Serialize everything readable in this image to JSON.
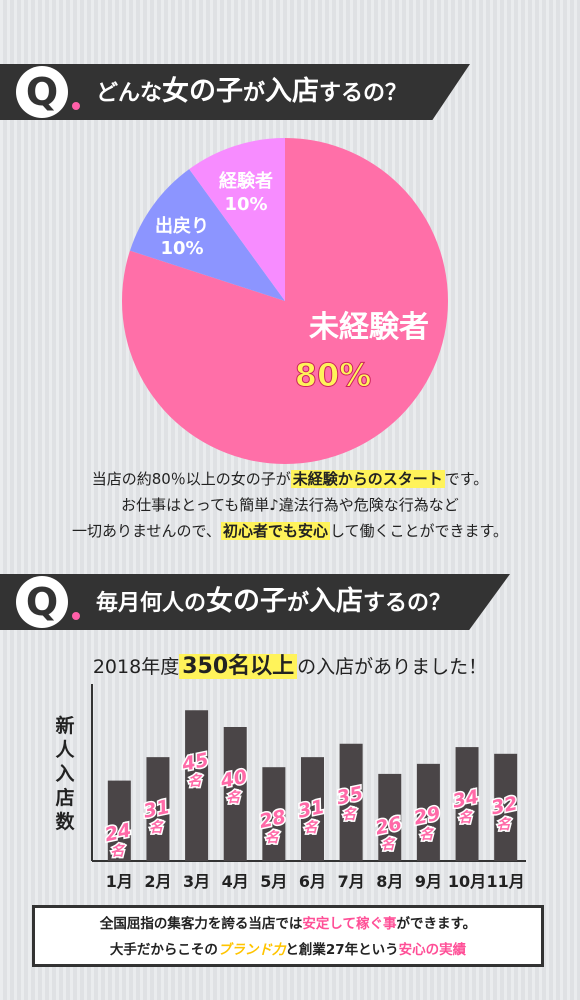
{
  "q1": {
    "q_letter": "Q",
    "parts": [
      "どんな",
      "女の子",
      "が",
      "入店",
      "するの？"
    ]
  },
  "pie": {
    "type": "pie",
    "slices": [
      {
        "label": "未経験者",
        "value": 80,
        "value_text": "80%",
        "color": "#ff6fa8"
      },
      {
        "label": "出戻り",
        "value": 10,
        "value_text": "10%",
        "color": "#8c95ff"
      },
      {
        "label": "経験者",
        "value": 10,
        "value_text": "10%",
        "color": "#f78cff"
      }
    ]
  },
  "desc1": {
    "line1_a": "当店の約80％以上の女の子が",
    "line1_hl": "未経験からのスタート",
    "line1_b": "です。",
    "line2": "お仕事はとっても簡単♪違法行為や危険な行為など",
    "line3_a": "一切ありませんので、",
    "line3_hl": "初心者でも安心",
    "line3_b": "して働くことができます。"
  },
  "q2": {
    "q_letter": "Q",
    "parts": [
      "毎月何人の",
      "女の子",
      "が",
      "入店",
      "するの？"
    ]
  },
  "subtitle": {
    "pre": "2018年度",
    "highlight": "350名以上",
    "post": "の入店がありました！"
  },
  "chart_data": {
    "type": "bar",
    "ylabel": "新人入店数",
    "categories": [
      "1月",
      "2月",
      "3月",
      "4月",
      "5月",
      "6月",
      "7月",
      "8月",
      "9月",
      "10月",
      "11月"
    ],
    "values": [
      24,
      31,
      45,
      40,
      28,
      31,
      35,
      26,
      29,
      34,
      32
    ],
    "data_label_num": [
      "24",
      "31",
      "45",
      "40",
      "28",
      "31",
      "35",
      "26",
      "29",
      "34",
      "32"
    ],
    "data_label_unit": "名",
    "bar_color": "#4a4547",
    "label_color": "#ff6aa8"
  },
  "footer": {
    "l1_a": "全国屈指の集客力を誇る当店では",
    "l1_hl": "安定して稼ぐ事",
    "l1_b": "ができます。",
    "l2_a": "大手だからこその",
    "l2_hl1": "ブランド力",
    "l2_b": "と創業27年という",
    "l2_hl2": "安心の実績"
  }
}
